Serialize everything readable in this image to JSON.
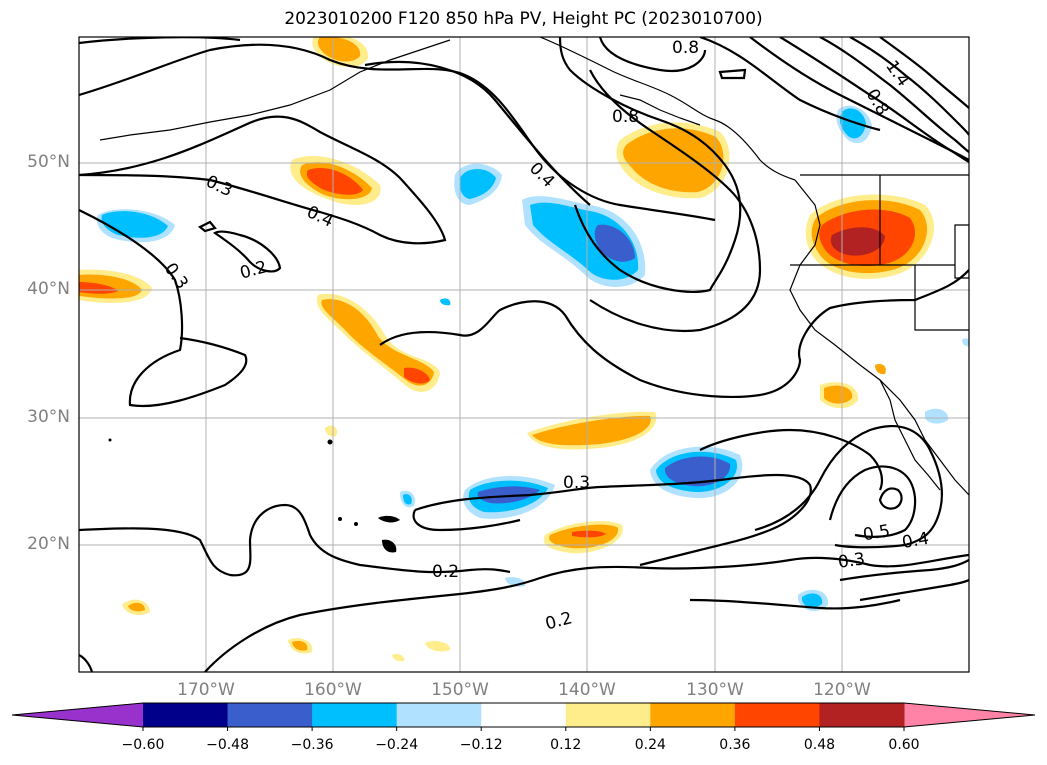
{
  "title": "2023010200 F120 850 hPa PV, Height PC (2023010700)",
  "lat_labels": [
    "50°N",
    "40°N",
    "30°N",
    "20°N"
  ],
  "lon_labels": [
    "170°W",
    "160°W",
    "150°W",
    "140°W",
    "130°W",
    "120°W"
  ],
  "contour_labels": [
    "0.8",
    "0.8",
    "1.4",
    "0.8",
    "0.4",
    "0.3",
    "0.4",
    "0.2",
    "0.3",
    "0.3",
    "0.2",
    "0.2",
    "0.5",
    "0.4",
    "0.3"
  ],
  "colorbar": {
    "ticks": [
      "−0.60",
      "−0.48",
      "−0.36",
      "−0.24",
      "−0.12",
      "0.12",
      "0.24",
      "0.36",
      "0.48",
      "0.60"
    ],
    "colors": [
      "#9932cc",
      "#00008b",
      "#3a5fcd",
      "#00bfff",
      "#b0e2ff",
      "#ffffff",
      "#ffec8b",
      "#ffa500",
      "#ff4500",
      "#b22222",
      "#ff83a6",
      "#ff83a6"
    ]
  },
  "colors": {
    "neg_light": "#b0e2ff",
    "neg_mid": "#00bfff",
    "neg_dark": "#3a5fcd",
    "pos_light": "#ffec8b",
    "pos_mid": "#ffa500",
    "pos_strong": "#ff4500",
    "pos_dark": "#b22222"
  }
}
